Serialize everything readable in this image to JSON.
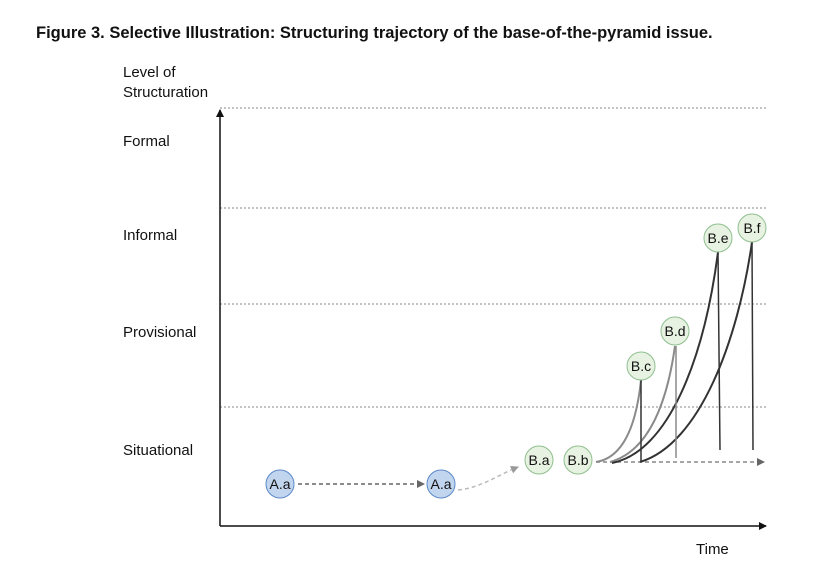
{
  "title": "Figure 3.  Selective Illustration: Structuring trajectory of the base-of-the-pyramid issue.",
  "y_axis_label_line1": "Level of",
  "y_axis_label_line2": "Structuration",
  "x_axis_label": "Time",
  "levels": [
    "Formal",
    "Informal",
    "Provisional",
    "Situational"
  ],
  "colors": {
    "a_fill": "#c2d5ee",
    "a_stroke": "#5b8ac9",
    "b_fill": "#e8f2e2",
    "b_stroke": "#8fbf8f"
  },
  "nodes": [
    {
      "id": "aa1",
      "label": "A.a",
      "group": "a"
    },
    {
      "id": "aa2",
      "label": "A.a",
      "group": "a"
    },
    {
      "id": "ba",
      "label": "B.a",
      "group": "b"
    },
    {
      "id": "bb",
      "label": "B.b",
      "group": "b"
    },
    {
      "id": "bc",
      "label": "B.c",
      "group": "b"
    },
    {
      "id": "bd",
      "label": "B.d",
      "group": "b"
    },
    {
      "id": "be",
      "label": "B.e",
      "group": "b"
    },
    {
      "id": "bf",
      "label": "B.f",
      "group": "b"
    }
  ]
}
